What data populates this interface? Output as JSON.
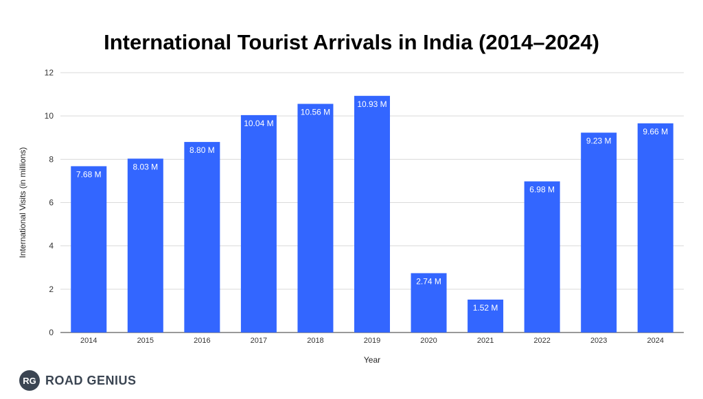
{
  "chart_data": {
    "type": "bar",
    "title": "International Tourist Arrivals in India (2014–2024)",
    "xlabel": "Year",
    "ylabel": "International Visits (in millions)",
    "ylim": [
      0,
      12
    ],
    "yticks": [
      0,
      2,
      4,
      6,
      8,
      10,
      12
    ],
    "grid": true,
    "categories": [
      "2014",
      "2015",
      "2016",
      "2017",
      "2018",
      "2019",
      "2020",
      "2021",
      "2022",
      "2023",
      "2024"
    ],
    "values": [
      7.68,
      8.03,
      8.8,
      10.04,
      10.56,
      10.93,
      2.74,
      1.52,
      6.98,
      9.23,
      9.66
    ],
    "data_labels": [
      "7.68 M",
      "8.03 M",
      "8.80 M",
      "10.04 M",
      "10.56 M",
      "10.93 M",
      "2.74 M",
      "1.52 M",
      "6.98 M",
      "9.23 M",
      "9.66 M"
    ],
    "bar_color": "#3366ff",
    "grid_color": "#d9d9d9"
  },
  "brand": {
    "logo_text": "RG",
    "name": "ROAD GENIUS"
  }
}
